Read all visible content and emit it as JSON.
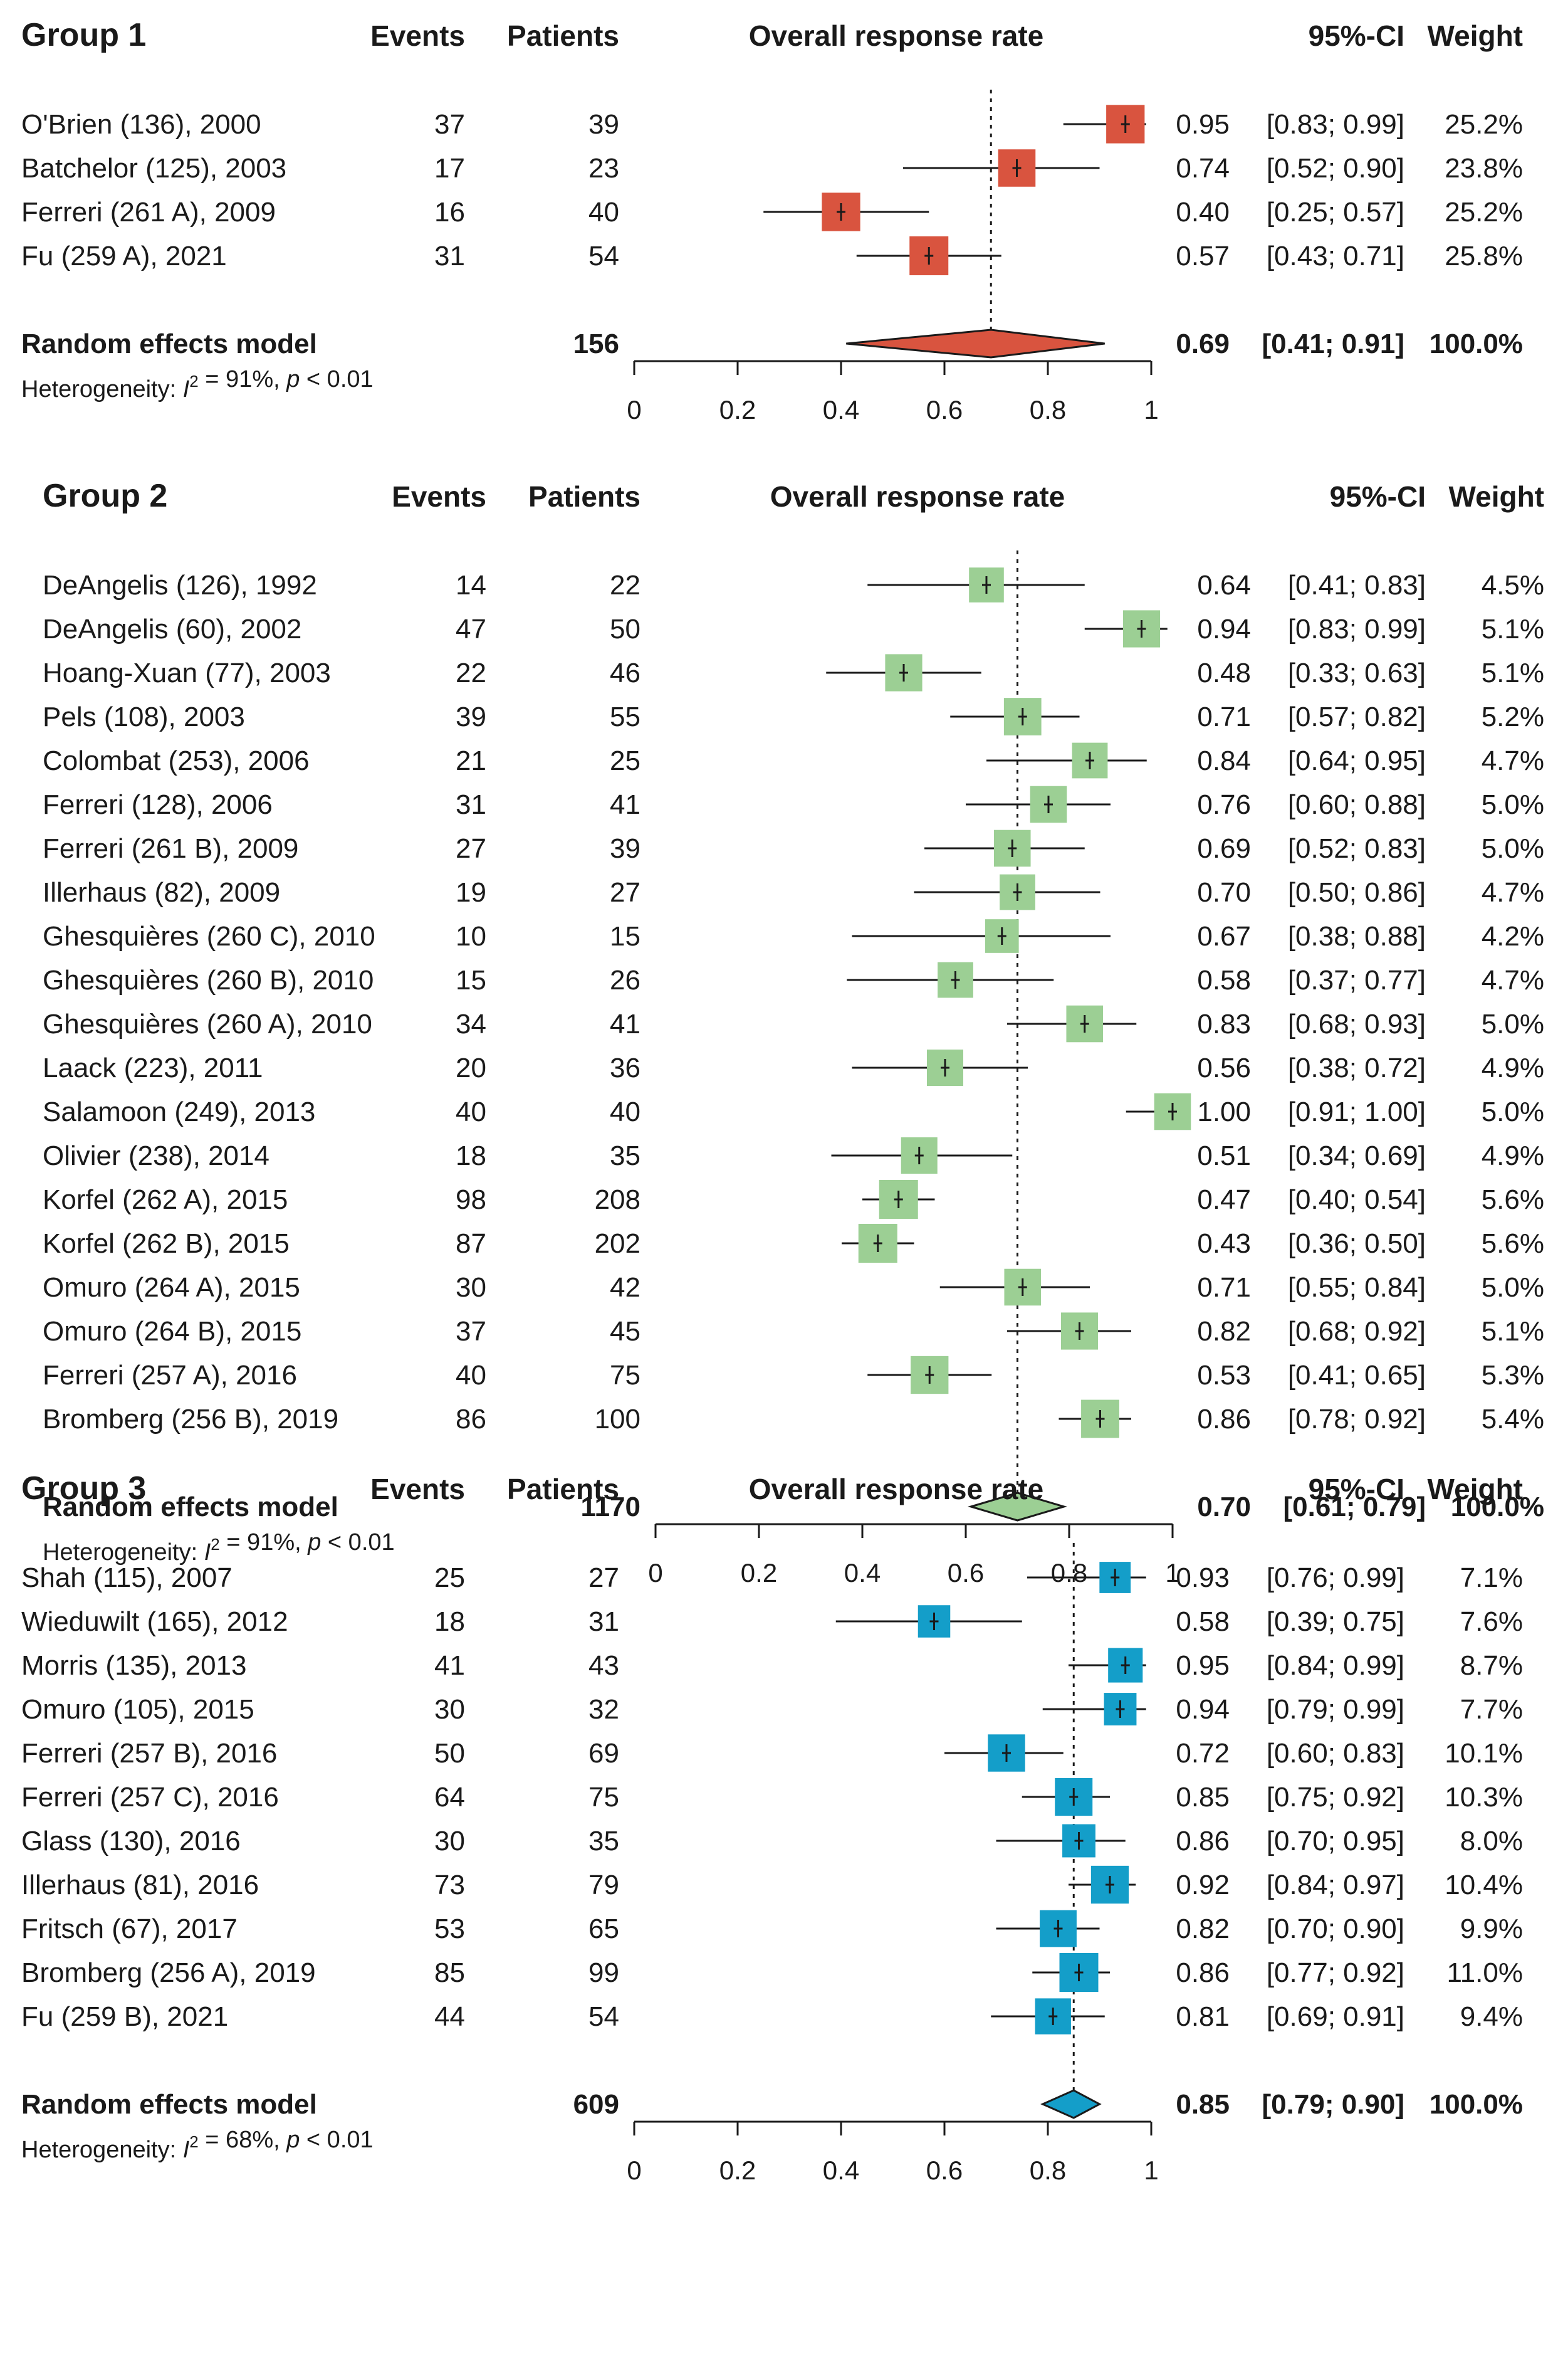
{
  "headers": {
    "events": "Events",
    "patients": "Patients",
    "axis_title": "Overall response rate",
    "ci": "95%-CI",
    "weight": "Weight"
  },
  "colors": {
    "group1": "#d9543f",
    "group2": "#9ccf94",
    "group3": "#149ec9",
    "line": "#1a1a1a"
  },
  "chart_data": {
    "type": "forest",
    "xlim": [
      0,
      1
    ],
    "ticks": [
      "0",
      "0.2",
      "0.4",
      "0.6",
      "0.8",
      "1"
    ],
    "groups": [
      {
        "title": "Group 1",
        "studies": [
          {
            "name": "O'Brien (136), 2000",
            "events": "37",
            "patients": "39",
            "est": 0.95,
            "lo": 0.83,
            "hi": 0.99,
            "est_text": "0.95",
            "ci_text": "[0.83; 0.99]",
            "weight": "25.2%",
            "w": 25.2
          },
          {
            "name": "Batchelor (125), 2003",
            "events": "17",
            "patients": "23",
            "est": 0.74,
            "lo": 0.52,
            "hi": 0.9,
            "est_text": "0.74",
            "ci_text": "[0.52; 0.90]",
            "weight": "23.8%",
            "w": 23.8
          },
          {
            "name": "Ferreri (261 A), 2009",
            "events": "16",
            "patients": "40",
            "est": 0.4,
            "lo": 0.25,
            "hi": 0.57,
            "est_text": "0.40",
            "ci_text": "[0.25; 0.57]",
            "weight": "25.2%",
            "w": 25.2
          },
          {
            "name": "Fu (259 A), 2021",
            "events": "31",
            "patients": "54",
            "est": 0.57,
            "lo": 0.43,
            "hi": 0.71,
            "est_text": "0.57",
            "ci_text": "[0.43; 0.71]",
            "weight": "25.8%",
            "w": 25.8
          }
        ],
        "model": {
          "label": "Random effects model",
          "patients": "156",
          "est": 0.69,
          "lo": 0.41,
          "hi": 0.91,
          "est_text": "0.69",
          "ci_text": "[0.41; 0.91]",
          "weight": "100.0%"
        },
        "heterogeneity": {
          "prefix": "Heterogeneity: ",
          "i": "I",
          "sup": "2",
          "rest": " = 91%, ",
          "p": "p",
          "tail": " < 0.01"
        }
      },
      {
        "title": "Group 2",
        "studies": [
          {
            "name": "DeAngelis (126), 1992",
            "events": "14",
            "patients": "22",
            "est": 0.64,
            "lo": 0.41,
            "hi": 0.83,
            "est_text": "0.64",
            "ci_text": "[0.41; 0.83]",
            "weight": "4.5%",
            "w": 4.5
          },
          {
            "name": "DeAngelis (60), 2002",
            "events": "47",
            "patients": "50",
            "est": 0.94,
            "lo": 0.83,
            "hi": 0.99,
            "est_text": "0.94",
            "ci_text": "[0.83; 0.99]",
            "weight": "5.1%",
            "w": 5.1
          },
          {
            "name": "Hoang-Xuan (77), 2003",
            "events": "22",
            "patients": "46",
            "est": 0.48,
            "lo": 0.33,
            "hi": 0.63,
            "est_text": "0.48",
            "ci_text": "[0.33; 0.63]",
            "weight": "5.1%",
            "w": 5.1
          },
          {
            "name": "Pels (108), 2003",
            "events": "39",
            "patients": "55",
            "est": 0.71,
            "lo": 0.57,
            "hi": 0.82,
            "est_text": "0.71",
            "ci_text": "[0.57; 0.82]",
            "weight": "5.2%",
            "w": 5.2
          },
          {
            "name": "Colombat (253), 2006",
            "events": "21",
            "patients": "25",
            "est": 0.84,
            "lo": 0.64,
            "hi": 0.95,
            "est_text": "0.84",
            "ci_text": "[0.64; 0.95]",
            "weight": "4.7%",
            "w": 4.7
          },
          {
            "name": "Ferreri (128), 2006",
            "events": "31",
            "patients": "41",
            "est": 0.76,
            "lo": 0.6,
            "hi": 0.88,
            "est_text": "0.76",
            "ci_text": "[0.60; 0.88]",
            "weight": "5.0%",
            "w": 5.0
          },
          {
            "name": "Ferreri (261 B), 2009",
            "events": "27",
            "patients": "39",
            "est": 0.69,
            "lo": 0.52,
            "hi": 0.83,
            "est_text": "0.69",
            "ci_text": "[0.52; 0.83]",
            "weight": "5.0%",
            "w": 5.0
          },
          {
            "name": "Illerhaus (82), 2009",
            "events": "19",
            "patients": "27",
            "est": 0.7,
            "lo": 0.5,
            "hi": 0.86,
            "est_text": "0.70",
            "ci_text": "[0.50; 0.86]",
            "weight": "4.7%",
            "w": 4.7
          },
          {
            "name": "Ghesquières (260 C), 2010",
            "events": "10",
            "patients": "15",
            "est": 0.67,
            "lo": 0.38,
            "hi": 0.88,
            "est_text": "0.67",
            "ci_text": "[0.38; 0.88]",
            "weight": "4.2%",
            "w": 4.2
          },
          {
            "name": "Ghesquières (260 B), 2010",
            "events": "15",
            "patients": "26",
            "est": 0.58,
            "lo": 0.37,
            "hi": 0.77,
            "est_text": "0.58",
            "ci_text": "[0.37; 0.77]",
            "weight": "4.7%",
            "w": 4.7
          },
          {
            "name": "Ghesquières (260 A), 2010",
            "events": "34",
            "patients": "41",
            "est": 0.83,
            "lo": 0.68,
            "hi": 0.93,
            "est_text": "0.83",
            "ci_text": "[0.68; 0.93]",
            "weight": "5.0%",
            "w": 5.0
          },
          {
            "name": "Laack (223), 2011",
            "events": "20",
            "patients": "36",
            "est": 0.56,
            "lo": 0.38,
            "hi": 0.72,
            "est_text": "0.56",
            "ci_text": "[0.38; 0.72]",
            "weight": "4.9%",
            "w": 4.9
          },
          {
            "name": "Salamoon (249), 2013",
            "events": "40",
            "patients": "40",
            "est": 1.0,
            "lo": 0.91,
            "hi": 1.0,
            "est_text": "1.00",
            "ci_text": "[0.91; 1.00]",
            "weight": "5.0%",
            "w": 5.0
          },
          {
            "name": "Olivier (238), 2014",
            "events": "18",
            "patients": "35",
            "est": 0.51,
            "lo": 0.34,
            "hi": 0.69,
            "est_text": "0.51",
            "ci_text": "[0.34; 0.69]",
            "weight": "4.9%",
            "w": 4.9
          },
          {
            "name": "Korfel (262 A), 2015",
            "events": "98",
            "patients": "208",
            "est": 0.47,
            "lo": 0.4,
            "hi": 0.54,
            "est_text": "0.47",
            "ci_text": "[0.40; 0.54]",
            "weight": "5.6%",
            "w": 5.6
          },
          {
            "name": "Korfel (262 B), 2015",
            "events": "87",
            "patients": "202",
            "est": 0.43,
            "lo": 0.36,
            "hi": 0.5,
            "est_text": "0.43",
            "ci_text": "[0.36; 0.50]",
            "weight": "5.6%",
            "w": 5.6
          },
          {
            "name": "Omuro (264 A), 2015",
            "events": "30",
            "patients": "42",
            "est": 0.71,
            "lo": 0.55,
            "hi": 0.84,
            "est_text": "0.71",
            "ci_text": "[0.55; 0.84]",
            "weight": "5.0%",
            "w": 5.0
          },
          {
            "name": "Omuro (264 B), 2015",
            "events": "37",
            "patients": "45",
            "est": 0.82,
            "lo": 0.68,
            "hi": 0.92,
            "est_text": "0.82",
            "ci_text": "[0.68; 0.92]",
            "weight": "5.1%",
            "w": 5.1
          },
          {
            "name": "Ferreri (257 A), 2016",
            "events": "40",
            "patients": "75",
            "est": 0.53,
            "lo": 0.41,
            "hi": 0.65,
            "est_text": "0.53",
            "ci_text": "[0.41; 0.65]",
            "weight": "5.3%",
            "w": 5.3
          },
          {
            "name": "Bromberg (256 B), 2019",
            "events": "86",
            "patients": "100",
            "est": 0.86,
            "lo": 0.78,
            "hi": 0.92,
            "est_text": "0.86",
            "ci_text": "[0.78; 0.92]",
            "weight": "5.4%",
            "w": 5.4
          }
        ],
        "model": {
          "label": "Random effects model",
          "patients": "1170",
          "est": 0.7,
          "lo": 0.61,
          "hi": 0.79,
          "est_text": "0.70",
          "ci_text": "[0.61; 0.79]",
          "weight": "100.0%"
        },
        "heterogeneity": {
          "prefix": "Heterogeneity: ",
          "i": "I",
          "sup": "2",
          "rest": " = 91%, ",
          "p": "p",
          "tail": " < 0.01"
        }
      },
      {
        "title": "Group 3",
        "studies": [
          {
            "name": "Shah (115), 2007",
            "events": "25",
            "patients": "27",
            "est": 0.93,
            "lo": 0.76,
            "hi": 0.99,
            "est_text": "0.93",
            "ci_text": "[0.76; 0.99]",
            "weight": "7.1%",
            "w": 7.1
          },
          {
            "name": "Wieduwilt (165), 2012",
            "events": "18",
            "patients": "31",
            "est": 0.58,
            "lo": 0.39,
            "hi": 0.75,
            "est_text": "0.58",
            "ci_text": "[0.39; 0.75]",
            "weight": "7.6%",
            "w": 7.6
          },
          {
            "name": "Morris (135), 2013",
            "events": "41",
            "patients": "43",
            "est": 0.95,
            "lo": 0.84,
            "hi": 0.99,
            "est_text": "0.95",
            "ci_text": "[0.84; 0.99]",
            "weight": "8.7%",
            "w": 8.7
          },
          {
            "name": "Omuro (105), 2015",
            "events": "30",
            "patients": "32",
            "est": 0.94,
            "lo": 0.79,
            "hi": 0.99,
            "est_text": "0.94",
            "ci_text": "[0.79; 0.99]",
            "weight": "7.7%",
            "w": 7.7
          },
          {
            "name": "Ferreri (257 B), 2016",
            "events": "50",
            "patients": "69",
            "est": 0.72,
            "lo": 0.6,
            "hi": 0.83,
            "est_text": "0.72",
            "ci_text": "[0.60; 0.83]",
            "weight": "10.1%",
            "w": 10.1
          },
          {
            "name": "Ferreri (257 C), 2016",
            "events": "64",
            "patients": "75",
            "est": 0.85,
            "lo": 0.75,
            "hi": 0.92,
            "est_text": "0.85",
            "ci_text": "[0.75; 0.92]",
            "weight": "10.3%",
            "w": 10.3
          },
          {
            "name": "Glass (130), 2016",
            "events": "30",
            "patients": "35",
            "est": 0.86,
            "lo": 0.7,
            "hi": 0.95,
            "est_text": "0.86",
            "ci_text": "[0.70; 0.95]",
            "weight": "8.0%",
            "w": 8.0
          },
          {
            "name": "Illerhaus (81), 2016",
            "events": "73",
            "patients": "79",
            "est": 0.92,
            "lo": 0.84,
            "hi": 0.97,
            "est_text": "0.92",
            "ci_text": "[0.84; 0.97]",
            "weight": "10.4%",
            "w": 10.4
          },
          {
            "name": "Fritsch (67), 2017",
            "events": "53",
            "patients": "65",
            "est": 0.82,
            "lo": 0.7,
            "hi": 0.9,
            "est_text": "0.82",
            "ci_text": "[0.70; 0.90]",
            "weight": "9.9%",
            "w": 9.9
          },
          {
            "name": "Bromberg (256 A), 2019",
            "events": "85",
            "patients": "99",
            "est": 0.86,
            "lo": 0.77,
            "hi": 0.92,
            "est_text": "0.86",
            "ci_text": "[0.77; 0.92]",
            "weight": "11.0%",
            "w": 11.0
          },
          {
            "name": "Fu (259  B), 2021",
            "events": "44",
            "patients": "54",
            "est": 0.81,
            "lo": 0.69,
            "hi": 0.91,
            "est_text": "0.81",
            "ci_text": "[0.69; 0.91]",
            "weight": "9.4%",
            "w": 9.4
          }
        ],
        "model": {
          "label": "Random effects model",
          "patients": "609",
          "est": 0.85,
          "lo": 0.79,
          "hi": 0.9,
          "est_text": "0.85",
          "ci_text": "[0.79; 0.90]",
          "weight": "100.0%"
        },
        "heterogeneity": {
          "prefix": "Heterogeneity: ",
          "i": "I",
          "sup": "2",
          "rest": " = 68%, ",
          "p": "p",
          "tail": " < 0.01"
        }
      }
    ]
  }
}
